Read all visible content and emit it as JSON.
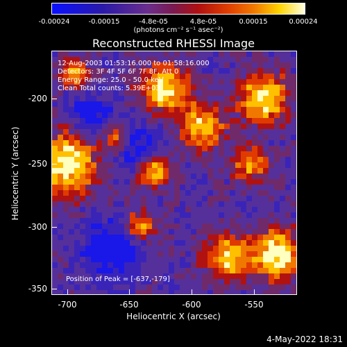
{
  "colorbar": {
    "ticks": [
      "-0.00024",
      "-0.00015",
      "-4.8e-05",
      "4.8e-05",
      "0.00015",
      "0.00024"
    ],
    "unit": "(photons cm⁻² s⁻¹ asec⁻²)"
  },
  "title": "Reconstructed RHESSI Image",
  "info": {
    "time": "12-Aug-2003 01:53:16.000 to 01:58:16.000",
    "detectors": "Detectors: 3F 4F 5F 6F 7F 8F, Att 0",
    "energy": "Energy Range: 25.0 - 50.0 keV",
    "clean": "Clean     Total counts: 5.39E+03",
    "peak": "Position of Peak = [-637,-179]"
  },
  "axes": {
    "xlabel": "Heliocentric X (arcsec)",
    "ylabel": "Heliocentric Y (arcsec)",
    "xticks": [
      "-700",
      "-650",
      "-600",
      "-550"
    ],
    "yticks": [
      "-200",
      "-250",
      "-300",
      "-350"
    ]
  },
  "footer": {
    "date": "4-May-2022 18:31"
  },
  "colors": {
    "background": "#000000",
    "text": "#ffffff"
  }
}
